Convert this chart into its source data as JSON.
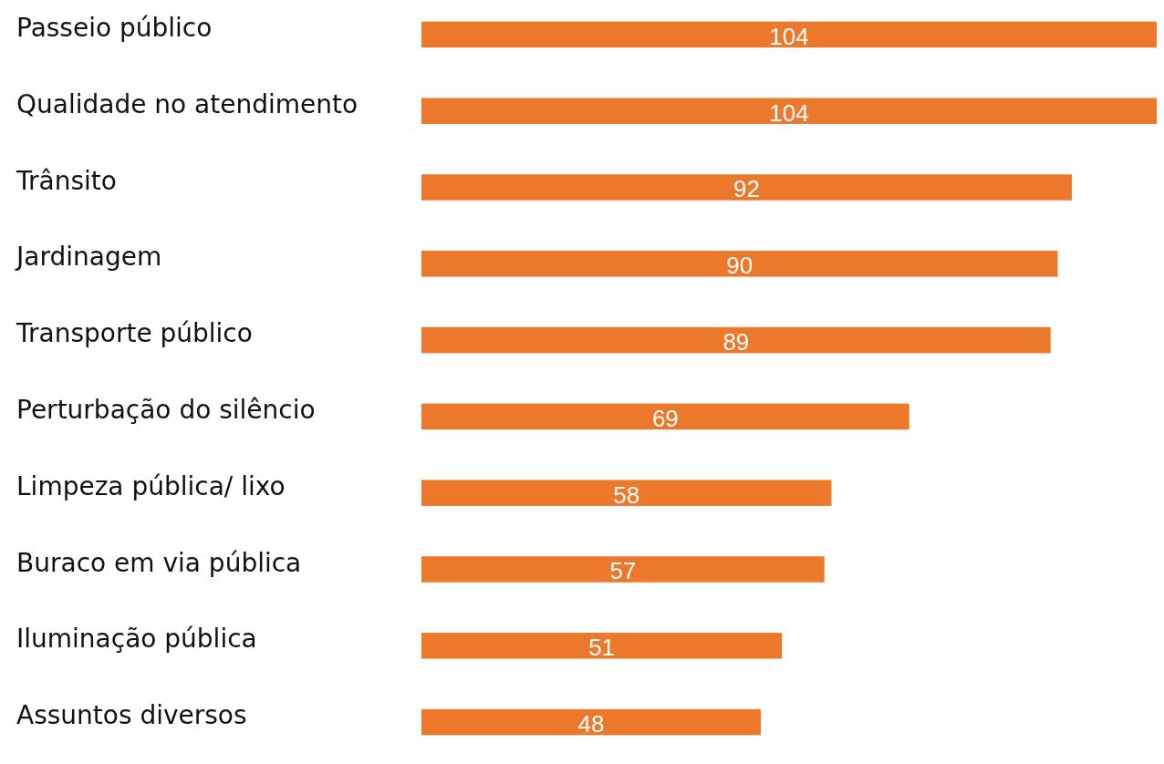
{
  "chart_data": {
    "type": "bar",
    "orientation": "horizontal",
    "data_labels": true,
    "color": "#eb782b",
    "categories": [
      "Passeio público",
      "Qualidade no atendimento",
      "Trânsito",
      "Jardinagem",
      "Transporte público",
      "Perturbação do silêncio",
      "Limpeza pública/ lixo",
      "Buraco em via pública",
      "Iluminação pública",
      "Assuntos diversos"
    ],
    "values": [
      104,
      104,
      92,
      90,
      89,
      69,
      58,
      57,
      51,
      48
    ]
  }
}
